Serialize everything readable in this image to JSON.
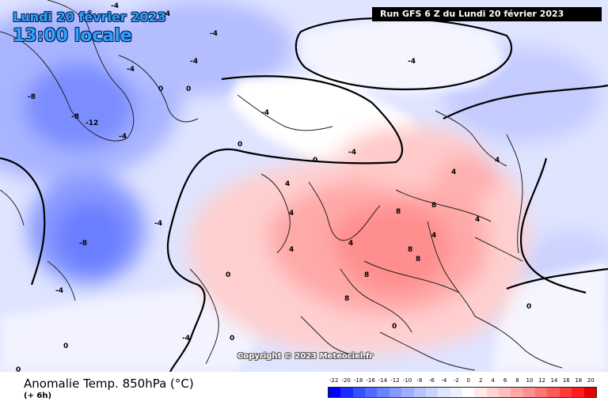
{
  "header": {
    "date_line": "Lundi 20 février 2023",
    "time_line": "13:00 locale",
    "run_info": "Run GFS 6 Z du Lundi 20 février 2023"
  },
  "map": {
    "copyright": "Copyright © 2023 Meteociel.fr",
    "contour_labels": [
      {
        "text": "-4"
      },
      {
        "text": "-4"
      },
      {
        "text": "-4"
      },
      {
        "text": "-4"
      },
      {
        "text": "-8"
      },
      {
        "text": "-8"
      },
      {
        "text": "-12"
      },
      {
        "text": "-4"
      },
      {
        "text": "0"
      },
      {
        "text": "0"
      },
      {
        "text": "-4"
      },
      {
        "text": "-4"
      },
      {
        "text": "-4"
      },
      {
        "text": "-8"
      },
      {
        "text": "-4"
      },
      {
        "text": "0"
      },
      {
        "text": "0"
      },
      {
        "text": "4"
      },
      {
        "text": "4"
      },
      {
        "text": "4"
      },
      {
        "text": "8"
      },
      {
        "text": "8"
      },
      {
        "text": "8"
      },
      {
        "text": "8"
      },
      {
        "text": "8"
      },
      {
        "text": "4"
      },
      {
        "text": "4"
      },
      {
        "text": "0"
      },
      {
        "text": "0"
      },
      {
        "text": "0"
      },
      {
        "text": "-4"
      },
      {
        "text": "-4"
      },
      {
        "text": "4"
      },
      {
        "text": "4"
      },
      {
        "text": "8"
      },
      {
        "text": "0"
      },
      {
        "text": "0"
      },
      {
        "text": "-4"
      },
      {
        "text": "4"
      },
      {
        "text": "0"
      }
    ]
  },
  "footer": {
    "title": "Anomalie Temp. 850hPa (°C)",
    "subtitle": "(+ 6h)"
  },
  "legend": {
    "ticks": [
      "-22",
      "-20",
      "-18",
      "-16",
      "-14",
      "-12",
      "-10",
      "-8",
      "-6",
      "-4",
      "-2",
      "0",
      "2",
      "4",
      "6",
      "8",
      "10",
      "12",
      "14",
      "16",
      "18",
      "20"
    ],
    "colors": [
      "#0000ff",
      "#1a2cff",
      "#3450ff",
      "#4e6bff",
      "#6a84ff",
      "#8699ff",
      "#a0aeff",
      "#b8c2ff",
      "#ccd3ff",
      "#dfe4ff",
      "#eef0ff",
      "#ffffff",
      "#ffe9e9",
      "#ffd3d3",
      "#ffbdbd",
      "#ffa6a6",
      "#ff8f8f",
      "#ff7575",
      "#ff5959",
      "#ff3a3a",
      "#ff1c1c",
      "#e60000"
    ]
  }
}
